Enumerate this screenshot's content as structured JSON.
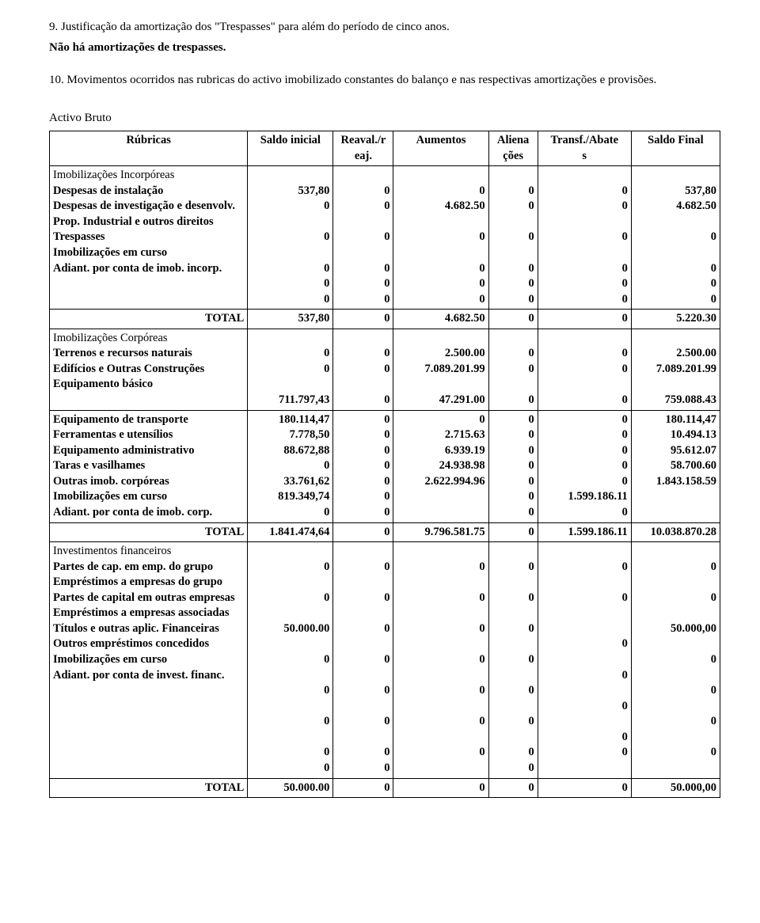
{
  "section9": {
    "title": "9. Justificação da amortização dos \"Trespasses\" para além do período de cinco anos.",
    "body": "Não há amortizações de trespasses."
  },
  "section10": {
    "title": "10. Movimentos ocorridos nas rubricas do activo imobilizado constantes do balanço e nas respectivas amortizações e provisões."
  },
  "table": {
    "caption": "Activo Bruto",
    "headers": {
      "rubricas_l1": "Rúbricas",
      "saldo_inicial_l1": "Saldo inicial",
      "reaval_l1": "Reaval./r",
      "reaval_l2": "eaj.",
      "aumentos_l1": "Aumentos",
      "aliena_l1": "Aliena",
      "aliena_l2": "ções",
      "transf_l1": "Transf./Abate",
      "transf_l2": "s",
      "saldo_final_l1": "Saldo Final"
    },
    "group_incorporeas": "Imobilizações Incorpóreas",
    "row_desp_instal": {
      "label": "Despesas de instalação",
      "c2": "537,80",
      "c3": "0",
      "c4": "0",
      "c5": "0",
      "c6": "0",
      "c7": "537,80"
    },
    "row_desp_invest": {
      "label": "Despesas de investigação e desenvolv.",
      "c2": "0",
      "c3": "0",
      "c4": "4.682.50",
      "c5": "0",
      "c6": "0",
      "c7": "4.682.50"
    },
    "row_prop_ind": {
      "label": "Prop. Industrial e outros direitos",
      "c2": "0",
      "c3": "0",
      "c4": "0",
      "c5": "0",
      "c6": "0",
      "c7": "0"
    },
    "row_trespasses": {
      "label": "Trespasses",
      "c2": "0",
      "c3": "0",
      "c4": "0",
      "c5": "0",
      "c6": "0",
      "c7": "0"
    },
    "row_imob_curso1": {
      "label": "Imobilizações em curso",
      "c2": "0",
      "c3": "0",
      "c4": "0",
      "c5": "0",
      "c6": "0",
      "c7": "0"
    },
    "row_adiant_incorp": {
      "label": "Adiant. por conta de imob. incorp.",
      "c2": "0",
      "c3": "0",
      "c4": "0",
      "c5": "0",
      "c6": "0",
      "c7": "0"
    },
    "total1": {
      "label": "TOTAL",
      "c2": "537,80",
      "c3": "0",
      "c4": "4.682.50",
      "c5": "0",
      "c6": "0",
      "c7": "5.220.30"
    },
    "group_corporeas": "Imobilizações Corpóreas",
    "row_terrenos": {
      "label": "Terrenos e recursos naturais",
      "c2": "0",
      "c3": "0",
      "c4": "2.500.00",
      "c5": "0",
      "c6": "0",
      "c7": "2.500.00"
    },
    "row_edificios": {
      "label": "Edifícios e Outras Construções",
      "c2": "0",
      "c3": "0",
      "c4": "7.089.201.99",
      "c5": "0",
      "c6": "0",
      "c7": "7.089.201.99"
    },
    "row_equip_basico": {
      "label": "Equipamento básico",
      "c2": "711.797,43",
      "c3": "0",
      "c4": "47.291.00",
      "c5": "0",
      "c6": "0",
      "c7": "759.088.43"
    },
    "row_equip_transp": {
      "label": "Equipamento de transporte",
      "c2": "180.114,47",
      "c3": "0",
      "c4": "0",
      "c5": "0",
      "c6": "0",
      "c7": "180.114,47"
    },
    "row_ferr": {
      "label": "Ferramentas e utensílios",
      "c2": "7.778,50",
      "c3": "0",
      "c4": "2.715.63",
      "c5": "0",
      "c6": "0",
      "c7": "10.494.13"
    },
    "row_equip_admin": {
      "label": "Equipamento administrativo",
      "c2": "88.672,88",
      "c3": "0",
      "c4": "6.939.19",
      "c5": "0",
      "c6": "0",
      "c7": "95.612.07"
    },
    "row_taras": {
      "label": "Taras e vasilhames",
      "c2": "0",
      "c3": "0",
      "c4": "",
      "c5": "0",
      "c6": "0",
      "c7": ""
    },
    "row_outras_corp": {
      "label": "Outras imob. corpóreas",
      "c2": "33.761,62",
      "c3": "0",
      "c4": "24.938.98",
      "c5": "0",
      "c6": "0",
      "c7": "58.700.60"
    },
    "row_imob_curso2": {
      "label": "Imobilizações em curso",
      "c2": "819.349,74",
      "c3": "0",
      "c4": "2.622.994.96",
      "c5": "0",
      "c6": "1.599.186.11",
      "c7": "1.843.158.59"
    },
    "row_adiant_corp": {
      "label": "Adiant. por conta de imob. corp.",
      "c2": "0",
      "c3": "0",
      "c4": "",
      "c5": "0",
      "c6": "0",
      "c7": ""
    },
    "total2": {
      "label": "TOTAL",
      "c2": "1.841.474,64",
      "c3": "0",
      "c4": "9.796.581.75",
      "c5": "0",
      "c6": "1.599.186.11",
      "c7": "10.038.870.28"
    },
    "group_invest": "Investimentos financeiros",
    "row_partes_grupo": {
      "label": "Partes de cap. em emp. do grupo",
      "c2": "0",
      "c3": "0",
      "c4": "0",
      "c5": "0",
      "c6": "0",
      "c7": "0"
    },
    "row_empr_grupo": {
      "label": "Empréstimos a empresas do grupo",
      "c2": "0",
      "c3": "0",
      "c4": "0",
      "c5": "0",
      "c6": "0",
      "c7": "0"
    },
    "row_partes_outras": {
      "label": "Partes de capital em outras empresas",
      "c2": "50.000.00",
      "c3": "0",
      "c4": "0",
      "c5": "0",
      "c6": "",
      "c7": "50.000,00"
    },
    "row_empr_assoc": {
      "label": "Empréstimos a empresas associadas",
      "c2": "0",
      "c3": "0",
      "c4": "0",
      "c5": "0",
      "c6": "0",
      "c7": "0"
    },
    "row_titulos": {
      "label": "Títulos e outras aplic. Financeiras",
      "c2": "0",
      "c3": "0",
      "c4": "0",
      "c5": "0",
      "c6": "0",
      "c7": "0"
    },
    "row_outros_empr": {
      "label": "Outros empréstimos concedidos",
      "c2": "0",
      "c3": "0",
      "c4": "0",
      "c5": "0",
      "c6": "0",
      "c7": "0"
    },
    "row_imob_curso3": {
      "label": "Imobilizações em curso",
      "c2": "0",
      "c3": "0",
      "c4": "",
      "c5": "0",
      "c6": "0",
      "c7": ""
    },
    "row_adiant_invest": {
      "label": "Adiant. por conta de invest. financ.",
      "c2": "0",
      "c3": "0",
      "c4": "0",
      "c5": "0",
      "c6": "0",
      "c7": "0"
    },
    "total3": {
      "label": "TOTAL",
      "c2": "50.000.00",
      "c3": "0",
      "c4": "0",
      "c5": "0",
      "c6": "0",
      "c7": "50.000,00"
    }
  }
}
